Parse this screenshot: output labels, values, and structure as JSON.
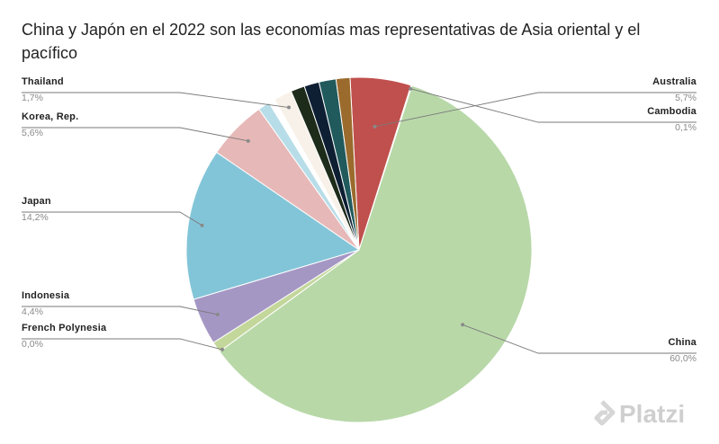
{
  "chart_data": {
    "type": "pie",
    "title": "China y Japón en el 2022 son las economías mas representativas de Asia oriental y el pacífico",
    "slices": [
      {
        "label": "Australia",
        "value": 5.7,
        "value_label": "5,7%",
        "color": "#c0504d",
        "labeled": true
      },
      {
        "label": "Cambodia",
        "value": 0.1,
        "value_label": "0,1%",
        "color": "#9bbb59",
        "labeled": true
      },
      {
        "label": "China",
        "value": 60.0,
        "value_label": "60,0%",
        "color": "#b8d8a8",
        "labeled": true
      },
      {
        "label": "French Polynesia",
        "value": 0.0,
        "value_label": "0,0%",
        "color": "#c4d79b",
        "labeled": true
      },
      {
        "label": "",
        "value": 1.0,
        "value_label": "",
        "color": "#c4d79b",
        "labeled": false
      },
      {
        "label": "Indonesia",
        "value": 4.4,
        "value_label": "4,4%",
        "color": "#a597c4",
        "labeled": true
      },
      {
        "label": "Japan",
        "value": 14.2,
        "value_label": "14,2%",
        "color": "#83c5d8",
        "labeled": true
      },
      {
        "label": "Korea, Rep.",
        "value": 5.6,
        "value_label": "5,6%",
        "color": "#e6b8b7",
        "labeled": true
      },
      {
        "label": "",
        "value": 1.1,
        "value_label": "",
        "color": "#b7dde8",
        "labeled": false
      },
      {
        "label": "",
        "value": 0.6,
        "value_label": "",
        "color": "#ffffff",
        "labeled": false
      },
      {
        "label": "Thailand",
        "value": 1.7,
        "value_label": "1,7%",
        "color": "#f8f1e9",
        "labeled": true
      },
      {
        "label": "",
        "value": 1.3,
        "value_label": "",
        "color": "#1d2b1a",
        "labeled": false
      },
      {
        "label": "",
        "value": 1.4,
        "value_label": "",
        "color": "#0e1f33",
        "labeled": false
      },
      {
        "label": "",
        "value": 1.6,
        "value_label": "",
        "color": "#215a5c",
        "labeled": false
      },
      {
        "label": "",
        "value": 1.3,
        "value_label": "",
        "color": "#9a6b2d",
        "labeled": false
      }
    ],
    "legend": "none"
  },
  "watermark": {
    "text": "Platzi",
    "icon": "platzi-logo-icon"
  }
}
